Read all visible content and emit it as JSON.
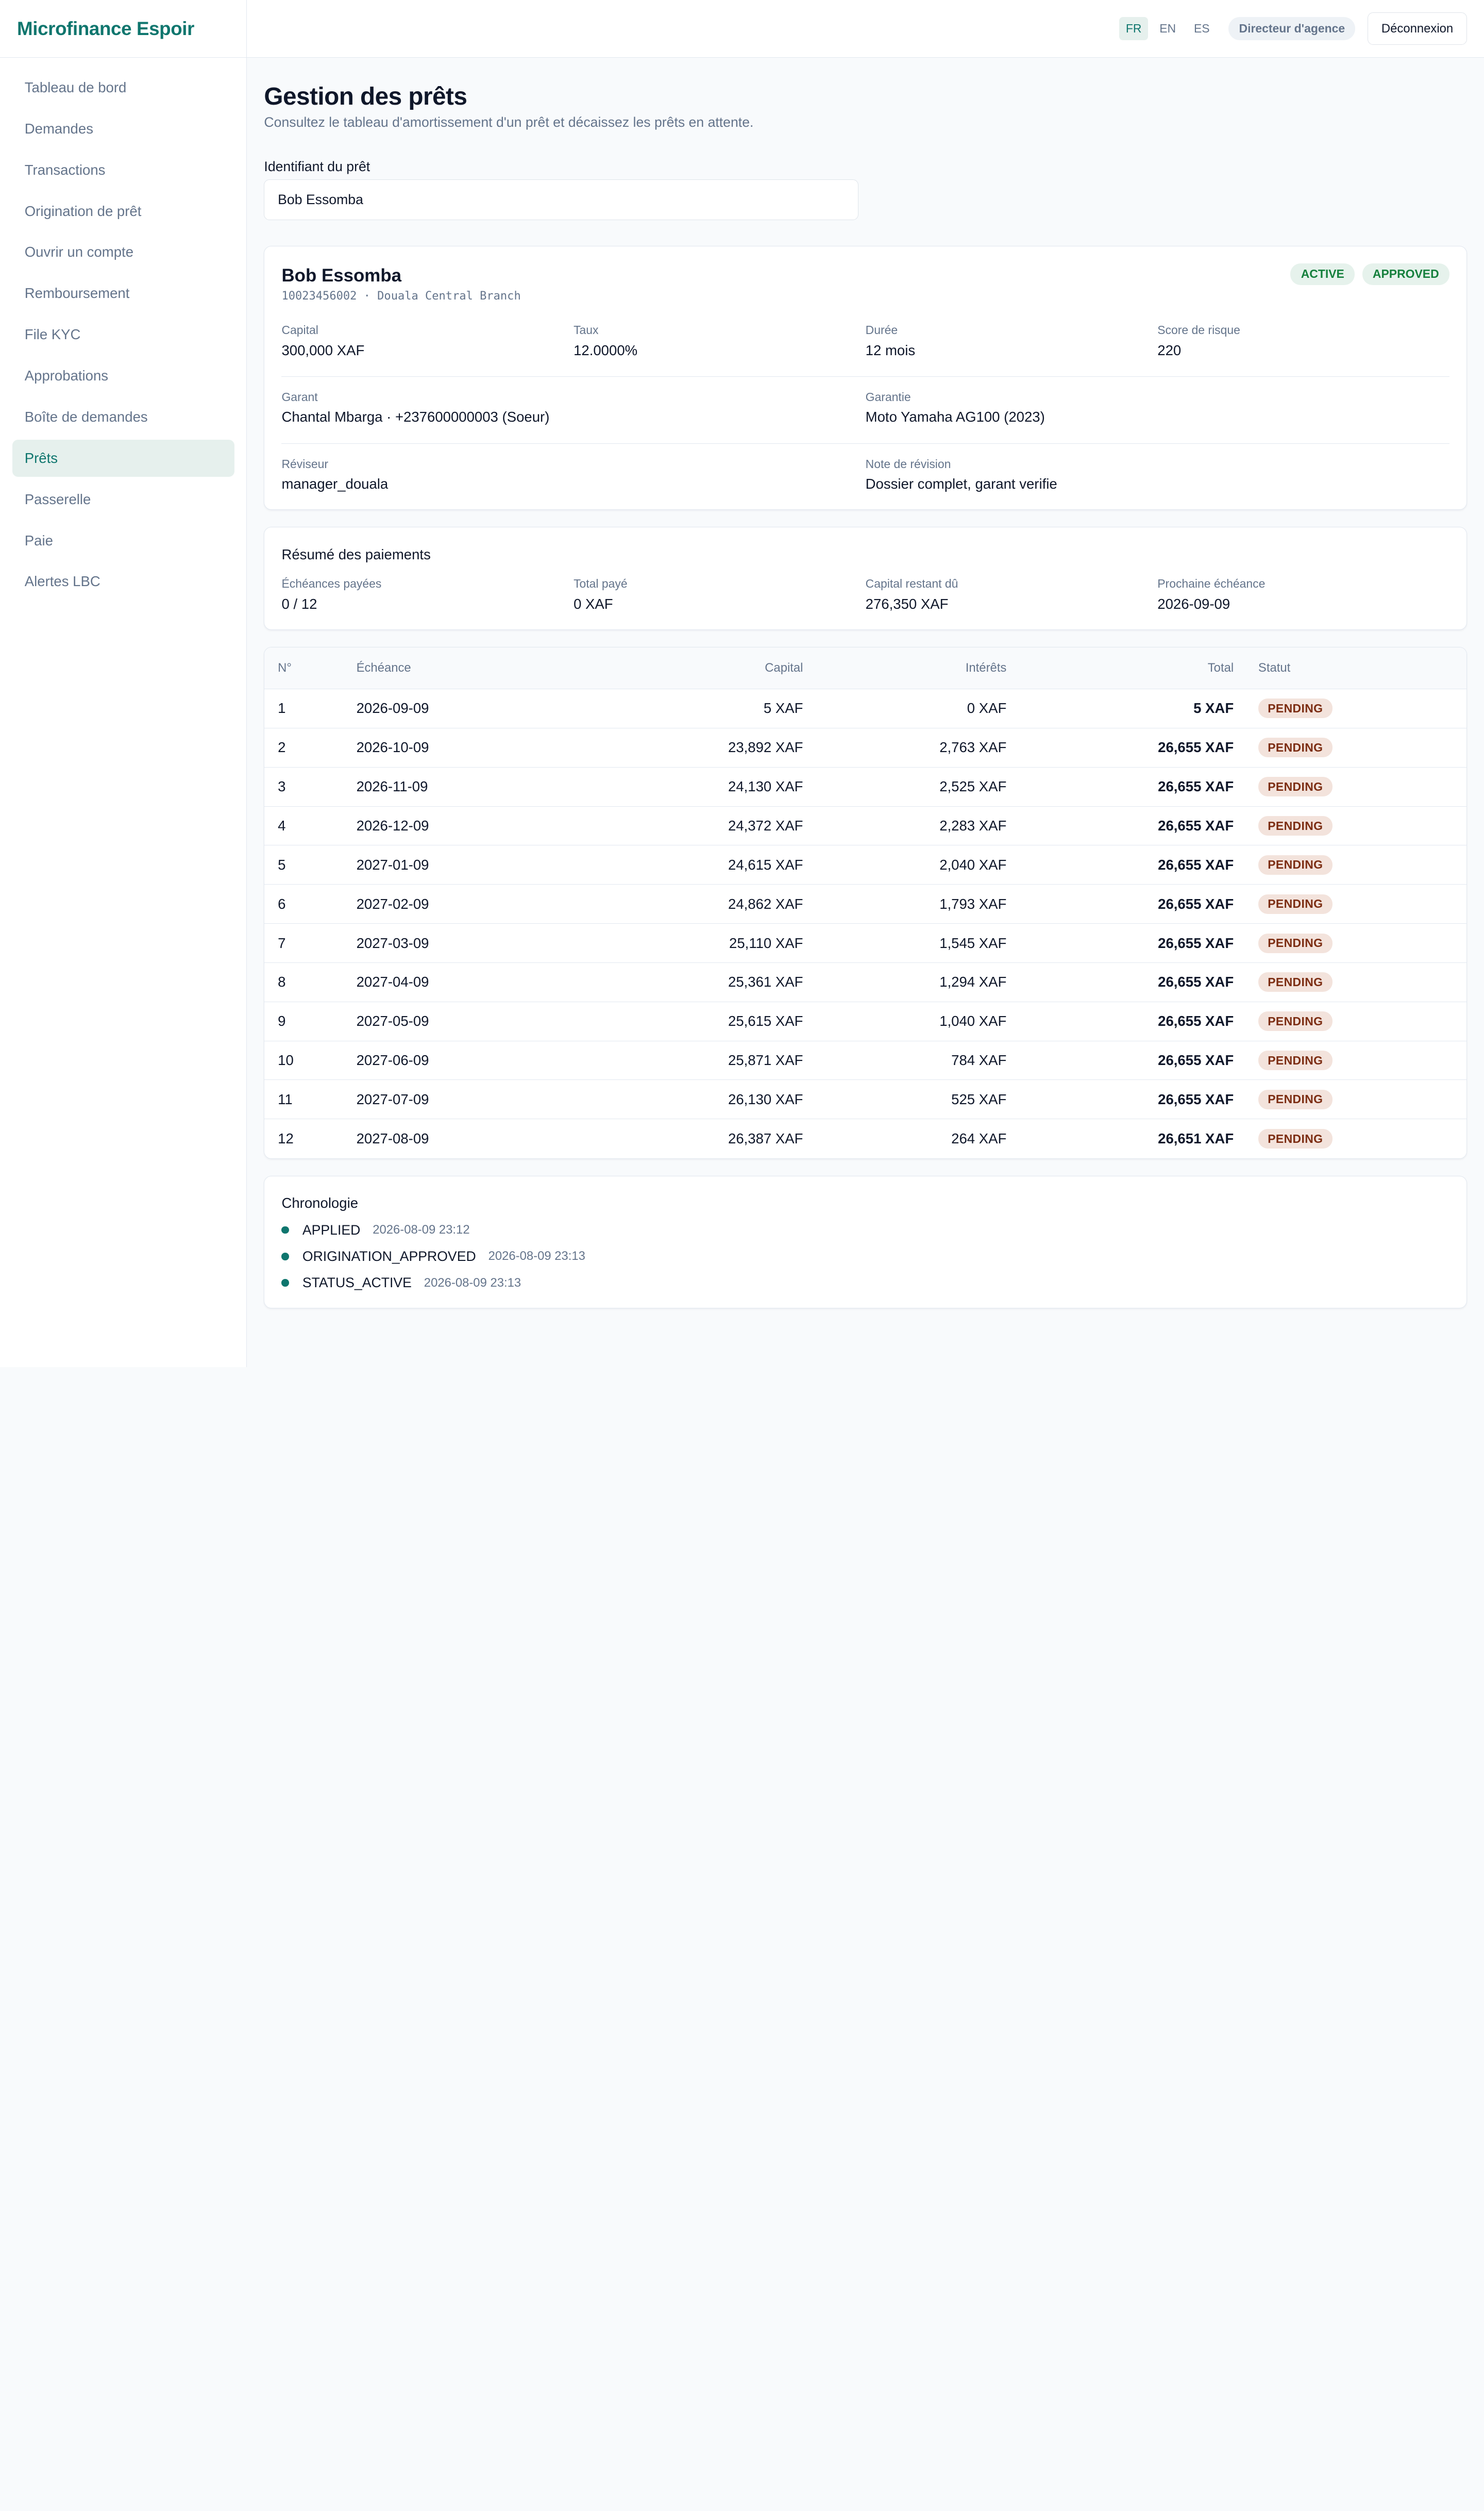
{
  "brand": "Microfinance Espoir",
  "sidebar": {
    "items": [
      {
        "label": "Tableau de bord"
      },
      {
        "label": "Demandes"
      },
      {
        "label": "Transactions"
      },
      {
        "label": "Origination de prêt"
      },
      {
        "label": "Ouvrir un compte"
      },
      {
        "label": "Remboursement"
      },
      {
        "label": "File KYC"
      },
      {
        "label": "Approbations"
      },
      {
        "label": "Boîte de demandes"
      },
      {
        "label": "Prêts",
        "active": true
      },
      {
        "label": "Passerelle"
      },
      {
        "label": "Paie"
      },
      {
        "label": "Alertes LBC"
      }
    ]
  },
  "topbar": {
    "languages": [
      "FR",
      "EN",
      "ES"
    ],
    "active_language": "FR",
    "role": "Directeur d'agence",
    "logout_label": "Déconnexion"
  },
  "page": {
    "title": "Gestion des prêts",
    "subtitle": "Consultez le tableau d'amortissement d'un prêt et décaissez les prêts en attente."
  },
  "search": {
    "label": "Identifiant du prêt",
    "value": "Bob Essomba"
  },
  "loan": {
    "name": "Bob Essomba",
    "subline": "10023456002 · Douala Central Branch",
    "badges": [
      "ACTIVE",
      "APPROVED"
    ],
    "capital_label": "Capital",
    "capital": "300,000 XAF",
    "rate_label": "Taux",
    "rate": "12.0000%",
    "duration_label": "Durée",
    "duration": "12 mois",
    "risk_label": "Score de risque",
    "risk": "220",
    "guarantor_label": "Garant",
    "guarantor": "Chantal Mbarga · +237600000003 (Soeur)",
    "collateral_label": "Garantie",
    "collateral": "Moto Yamaha AG100 (2023)",
    "reviewer_label": "Réviseur",
    "reviewer": "manager_douala",
    "review_note_label": "Note de révision",
    "review_note": "Dossier complet, garant verifie"
  },
  "summary": {
    "title": "Résumé des paiements",
    "paid_label": "Échéances payées",
    "paid": "0 / 12",
    "total_paid_label": "Total payé",
    "total_paid": "0 XAF",
    "remaining_label": "Capital restant dû",
    "remaining": "276,350 XAF",
    "next_label": "Prochaine échéance",
    "next": "2026-09-09"
  },
  "schedule": {
    "headers": {
      "num": "N°",
      "due": "Échéance",
      "capital": "Capital",
      "interest": "Intérêts",
      "total": "Total",
      "status": "Statut"
    },
    "rows": [
      {
        "n": "1",
        "date": "2026-09-09",
        "capital": "5 XAF",
        "interest": "0 XAF",
        "total": "5 XAF",
        "status": "PENDING"
      },
      {
        "n": "2",
        "date": "2026-10-09",
        "capital": "23,892 XAF",
        "interest": "2,763 XAF",
        "total": "26,655 XAF",
        "status": "PENDING"
      },
      {
        "n": "3",
        "date": "2026-11-09",
        "capital": "24,130 XAF",
        "interest": "2,525 XAF",
        "total": "26,655 XAF",
        "status": "PENDING"
      },
      {
        "n": "4",
        "date": "2026-12-09",
        "capital": "24,372 XAF",
        "interest": "2,283 XAF",
        "total": "26,655 XAF",
        "status": "PENDING"
      },
      {
        "n": "5",
        "date": "2027-01-09",
        "capital": "24,615 XAF",
        "interest": "2,040 XAF",
        "total": "26,655 XAF",
        "status": "PENDING"
      },
      {
        "n": "6",
        "date": "2027-02-09",
        "capital": "24,862 XAF",
        "interest": "1,793 XAF",
        "total": "26,655 XAF",
        "status": "PENDING"
      },
      {
        "n": "7",
        "date": "2027-03-09",
        "capital": "25,110 XAF",
        "interest": "1,545 XAF",
        "total": "26,655 XAF",
        "status": "PENDING"
      },
      {
        "n": "8",
        "date": "2027-04-09",
        "capital": "25,361 XAF",
        "interest": "1,294 XAF",
        "total": "26,655 XAF",
        "status": "PENDING"
      },
      {
        "n": "9",
        "date": "2027-05-09",
        "capital": "25,615 XAF",
        "interest": "1,040 XAF",
        "total": "26,655 XAF",
        "status": "PENDING"
      },
      {
        "n": "10",
        "date": "2027-06-09",
        "capital": "25,871 XAF",
        "interest": "784 XAF",
        "total": "26,655 XAF",
        "status": "PENDING"
      },
      {
        "n": "11",
        "date": "2027-07-09",
        "capital": "26,130 XAF",
        "interest": "525 XAF",
        "total": "26,655 XAF",
        "status": "PENDING"
      },
      {
        "n": "12",
        "date": "2027-08-09",
        "capital": "26,387 XAF",
        "interest": "264 XAF",
        "total": "26,651 XAF",
        "status": "PENDING"
      }
    ]
  },
  "timeline": {
    "title": "Chronologie",
    "events": [
      {
        "event": "APPLIED",
        "time": "2026-08-09 23:12"
      },
      {
        "event": "ORIGINATION_APPROVED",
        "time": "2026-08-09 23:13"
      },
      {
        "event": "STATUS_ACTIVE",
        "time": "2026-08-09 23:13"
      }
    ]
  },
  "colors": {
    "brand": "#0f766e",
    "active_nav_bg": "#e6f0ed",
    "badge_green_text": "#15803d",
    "pending_bg": "#f3e3dc",
    "pending_text": "#7c2d12"
  }
}
